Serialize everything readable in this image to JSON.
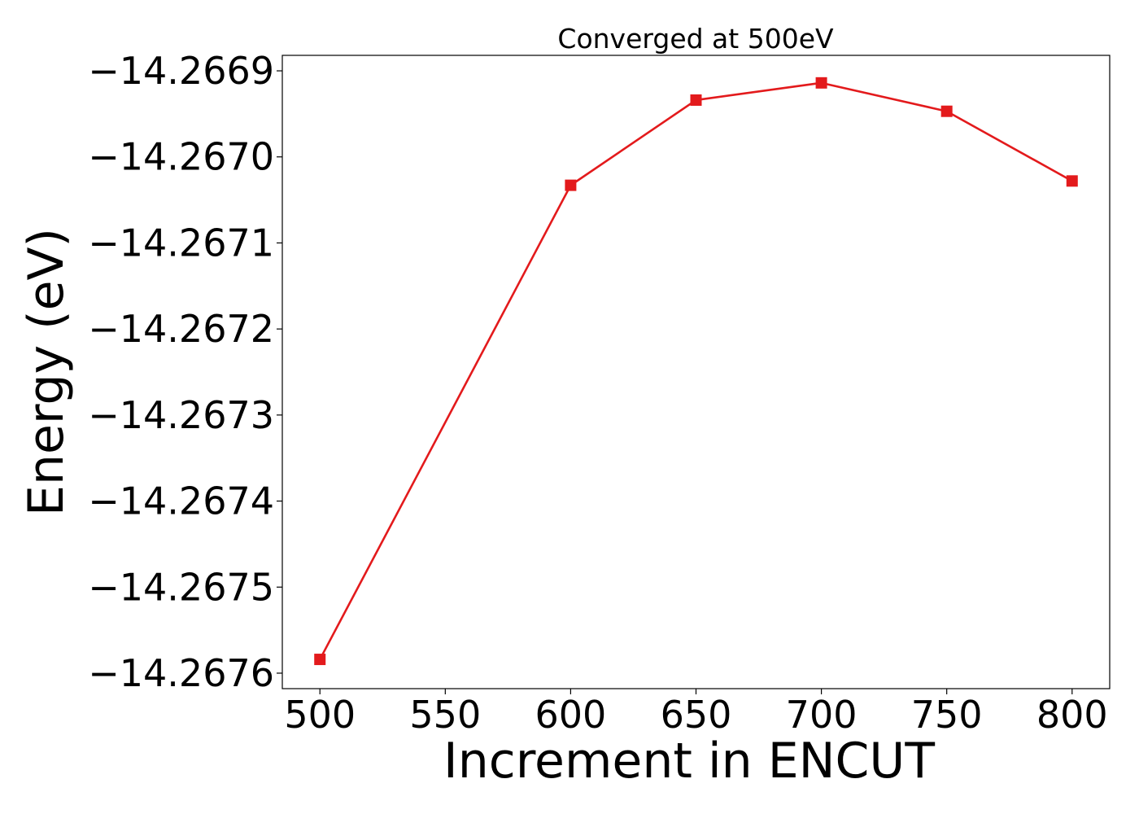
{
  "chart_data": {
    "type": "line",
    "title": "Converged at 500eV",
    "xlabel": "Increment in ENCUT",
    "ylabel": "Energy (eV)",
    "x": [
      500,
      600,
      650,
      700,
      750,
      800
    ],
    "series": [
      {
        "values": [
          -14.267584,
          -14.267033,
          -14.266934,
          -14.266914,
          -14.266947,
          -14.267028
        ],
        "color": "#e31a1c",
        "marker": "square"
      }
    ],
    "xlim": [
      485,
      815
    ],
    "ylim": [
      -14.267618,
      -14.266882
    ],
    "xticks": [
      500,
      550,
      600,
      650,
      700,
      750,
      800
    ],
    "xtick_labels": [
      "500",
      "550",
      "600",
      "650",
      "700",
      "750",
      "800"
    ],
    "yticks": [
      -14.2676,
      -14.2675,
      -14.2674,
      -14.2673,
      -14.2672,
      -14.2671,
      -14.267,
      -14.2669
    ],
    "ytick_labels": [
      "−14.2676",
      "−14.2675",
      "−14.2674",
      "−14.2673",
      "−14.2672",
      "−14.2671",
      "−14.2670",
      "−14.2669"
    ],
    "grid": false,
    "legend": "none"
  }
}
